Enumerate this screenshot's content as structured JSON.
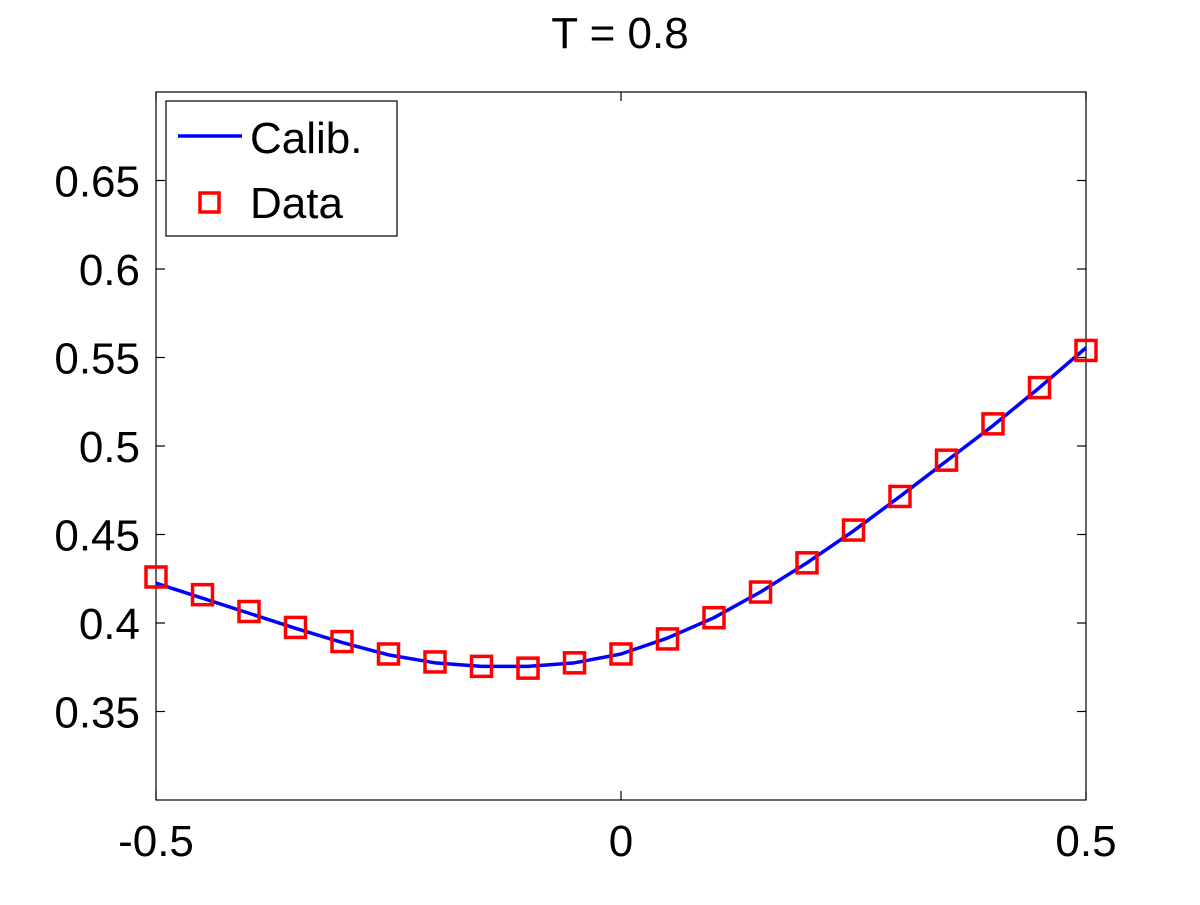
{
  "chart_data": {
    "type": "line",
    "title": "T = 0.8",
    "xlabel": "",
    "ylabel": "",
    "xlim": [
      -0.5,
      0.5
    ],
    "ylim": [
      0.3,
      0.7
    ],
    "xticks": [
      -0.5,
      0,
      0.5
    ],
    "xtick_labels": [
      "-0.5",
      "0",
      "0.5"
    ],
    "yticks": [
      0.35,
      0.4,
      0.45,
      0.5,
      0.55,
      0.6,
      0.65
    ],
    "ytick_labels": [
      "0.35",
      "0.4",
      "0.45",
      "0.5",
      "0.55",
      "0.6",
      "0.65"
    ],
    "grid": false,
    "legend_position": "top-left",
    "series": [
      {
        "name": "Calib.",
        "style": "line",
        "color": "#0000FF",
        "x": [
          -0.5,
          -0.45,
          -0.4,
          -0.35,
          -0.3,
          -0.25,
          -0.2,
          -0.15,
          -0.1,
          -0.05,
          0,
          0.05,
          0.1,
          0.15,
          0.2,
          0.25,
          0.3,
          0.35,
          0.4,
          0.45,
          0.5
        ],
        "y": [
          0.4225,
          0.414,
          0.4055,
          0.397,
          0.389,
          0.382,
          0.3775,
          0.3755,
          0.3755,
          0.3775,
          0.3825,
          0.3915,
          0.403,
          0.4175,
          0.434,
          0.452,
          0.4715,
          0.4915,
          0.5115,
          0.533,
          0.5555
        ]
      },
      {
        "name": "Data",
        "style": "marker-square",
        "color": "#FF0000",
        "x": [
          -0.5,
          -0.45,
          -0.4,
          -0.35,
          -0.3,
          -0.25,
          -0.2,
          -0.15,
          -0.1,
          -0.05,
          0,
          0.05,
          0.1,
          0.15,
          0.2,
          0.25,
          0.3,
          0.35,
          0.4,
          0.45,
          0.5
        ],
        "y": [
          0.426,
          0.416,
          0.4065,
          0.3975,
          0.3895,
          0.3825,
          0.378,
          0.3755,
          0.3745,
          0.3775,
          0.3825,
          0.391,
          0.403,
          0.4175,
          0.434,
          0.4525,
          0.4715,
          0.492,
          0.5125,
          0.533,
          0.554
        ]
      }
    ]
  }
}
